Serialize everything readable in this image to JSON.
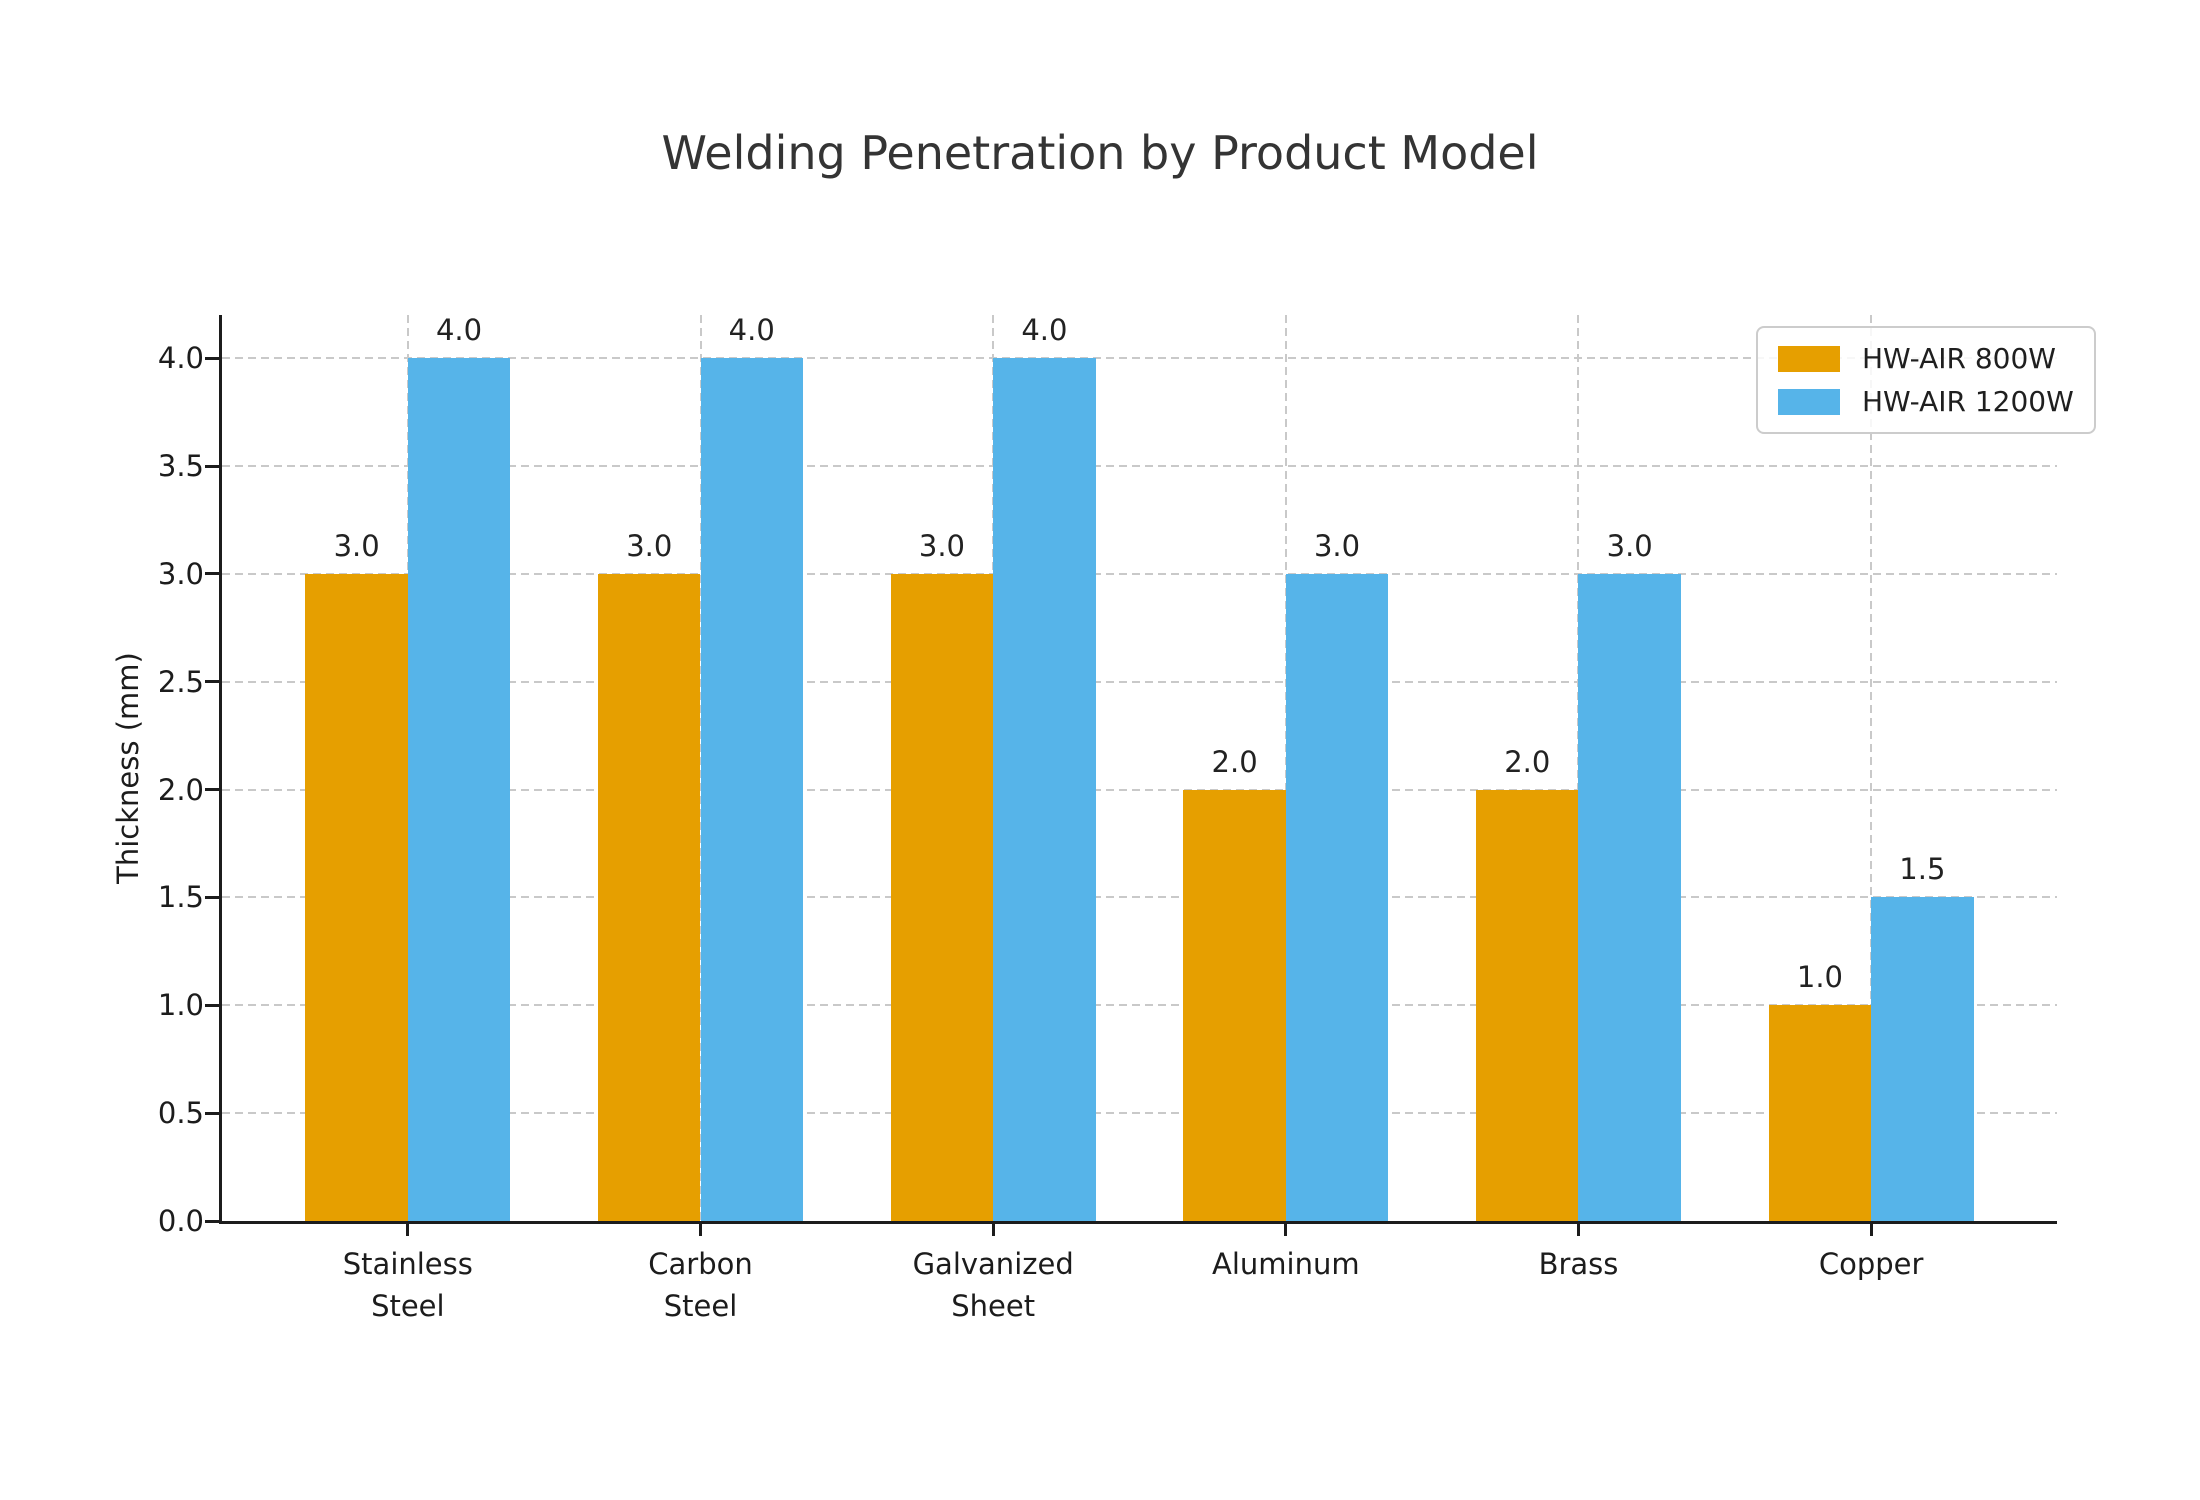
{
  "chart_data": {
    "type": "bar",
    "title": "Welding Penetration by Product Model",
    "ylabel": "Thickness (mm)",
    "xlabel": "",
    "categories": [
      "Stainless\nSteel",
      "Carbon\nSteel",
      "Galvanized\nSheet",
      "Aluminum",
      "Brass",
      "Copper"
    ],
    "series": [
      {
        "name": "HW-AIR 800W",
        "color": "#E69F00",
        "values": [
          3.0,
          3.0,
          3.0,
          2.0,
          2.0,
          1.0
        ]
      },
      {
        "name": "HW-AIR 1200W",
        "color": "#56B4E9",
        "values": [
          4.0,
          4.0,
          4.0,
          3.0,
          3.0,
          1.5
        ]
      }
    ],
    "ylim": [
      0,
      4.2
    ],
    "ytick_step": 0.5,
    "ytick_labels": [
      "0.0",
      "0.5",
      "1.0",
      "1.5",
      "2.0",
      "2.5",
      "3.0",
      "3.5",
      "4.0"
    ],
    "bar_value_labels": {
      "HW-AIR 800W": [
        "3.0",
        "3.0",
        "3.0",
        "2.0",
        "2.0",
        "1.0"
      ],
      "HW-AIR 1200W": [
        "4.0",
        "4.0",
        "4.0",
        "3.0",
        "3.0",
        "1.5"
      ]
    },
    "grid": "dashed, horizontal at 0.5 steps and vertical at category centers",
    "legend_position": "upper-right"
  }
}
